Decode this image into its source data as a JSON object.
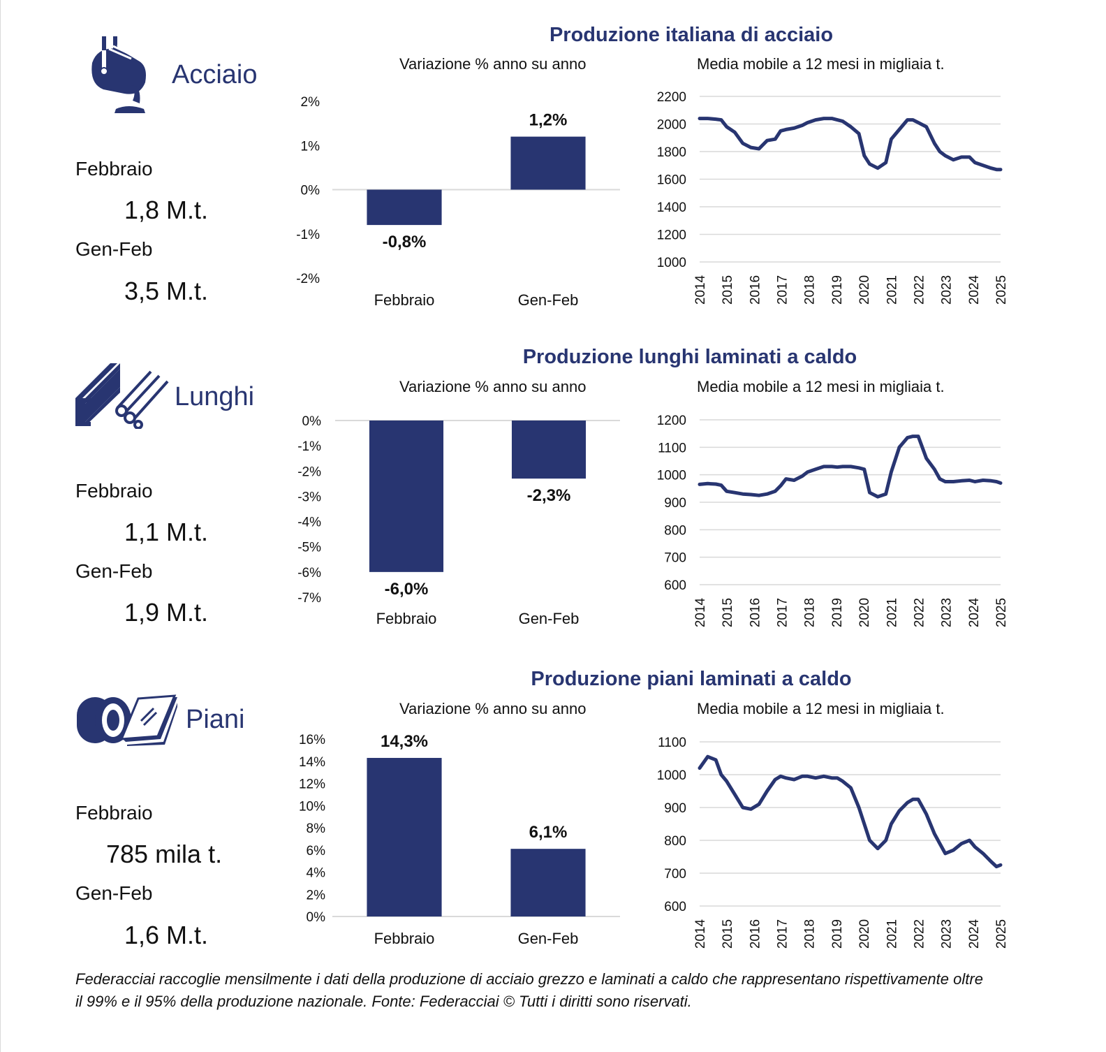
{
  "colors": {
    "accent": "#283571",
    "grid": "#d9d9d9"
  },
  "sections": [
    {
      "name": "Acciaio",
      "icon": "ladle-icon",
      "month_label": "Febbraio",
      "month_value": "1,8 M.t.",
      "ytd_label": "Gen-Feb",
      "ytd_value": "3,5 M.t.",
      "title": "Produzione italiana di acciaio",
      "bar_subtitle": "Variazione % anno su anno",
      "line_subtitle": "Media mobile a 12 mesi in migliaia t."
    },
    {
      "name": "Lunghi",
      "icon": "beam-bars-icon",
      "month_label": "Febbraio",
      "month_value": "1,1 M.t.",
      "ytd_label": "Gen-Feb",
      "ytd_value": "1,9 M.t.",
      "title": "Produzione lunghi laminati a caldo",
      "bar_subtitle": "Variazione % anno su anno",
      "line_subtitle": "Media mobile a 12 mesi in migliaia t."
    },
    {
      "name": "Piani",
      "icon": "coil-sheets-icon",
      "month_label": "Febbraio",
      "month_value": "785 mila t.",
      "ytd_label": "Gen-Feb",
      "ytd_value": "1,6 M.t.",
      "title": "Produzione piani laminati a caldo",
      "bar_subtitle": "Variazione % anno su anno",
      "line_subtitle": "Media mobile a 12 mesi in migliaia t."
    }
  ],
  "footnote": "Federacciai raccoglie mensilmente i dati della produzione di acciaio grezzo e laminati a caldo che rappresentano rispettivamente oltre il 99% e il 95% della produzione nazionale. Fonte: Federacciai © Tutti i diritti sono riservati.",
  "chart_data": [
    {
      "type": "bar",
      "categories": [
        "Febbraio",
        "Gen-Feb"
      ],
      "values": [
        -0.8,
        1.2
      ],
      "data_labels": [
        "-0,8%",
        "1,2%"
      ],
      "ylim": [
        -2,
        2
      ],
      "y_ticks": [
        2,
        1,
        0,
        -1,
        -2
      ],
      "y_tick_labels": [
        "2%",
        "1%",
        "0%",
        "-1%",
        "-2%"
      ],
      "color": "#283571"
    },
    {
      "type": "line",
      "x_tick_labels": [
        "2014",
        "2015",
        "2016",
        "2017",
        "2018",
        "2019",
        "2020",
        "2021",
        "2022",
        "2023",
        "2024",
        "2025"
      ],
      "ylim": [
        1000,
        2200
      ],
      "y_ticks": [
        2200,
        2000,
        1800,
        1600,
        1400,
        1200,
        1000
      ],
      "y_tick_labels": [
        "2200",
        "2000",
        "1800",
        "1600",
        "1400",
        "1200",
        "1000"
      ],
      "x": [
        2014.0,
        2014.3,
        2014.6,
        2014.8,
        2015.0,
        2015.3,
        2015.6,
        2015.9,
        2016.2,
        2016.5,
        2016.8,
        2017.0,
        2017.2,
        2017.5,
        2017.8,
        2018.0,
        2018.3,
        2018.6,
        2018.9,
        2019.1,
        2019.3,
        2019.6,
        2019.9,
        2020.1,
        2020.3,
        2020.6,
        2020.9,
        2021.1,
        2021.4,
        2021.7,
        2021.9,
        2022.1,
        2022.4,
        2022.7,
        2022.9,
        2023.1,
        2023.4,
        2023.7,
        2024.0,
        2024.2,
        2024.5,
        2024.8,
        2025.0,
        2025.15
      ],
      "series": [
        {
          "values": [
            2040,
            2040,
            2035,
            2030,
            1980,
            1940,
            1860,
            1830,
            1820,
            1880,
            1890,
            1950,
            1960,
            1970,
            1990,
            2010,
            2030,
            2040,
            2040,
            2030,
            2020,
            1980,
            1930,
            1770,
            1710,
            1680,
            1720,
            1890,
            1960,
            2030,
            2030,
            2010,
            1980,
            1860,
            1800,
            1770,
            1740,
            1760,
            1760,
            1720,
            1700,
            1680,
            1670,
            1670
          ]
        }
      ],
      "color": "#283571"
    },
    {
      "type": "bar",
      "categories": [
        "Febbraio",
        "Gen-Feb"
      ],
      "values": [
        -6.0,
        -2.3
      ],
      "data_labels": [
        "-6,0%",
        "-2,3%"
      ],
      "ylim": [
        -7,
        0
      ],
      "y_ticks": [
        0,
        -1,
        -2,
        -3,
        -4,
        -5,
        -6,
        -7
      ],
      "y_tick_labels": [
        "0%",
        "-1%",
        "-2%",
        "-3%",
        "-4%",
        "-5%",
        "-6%",
        "-7%"
      ],
      "color": "#283571"
    },
    {
      "type": "line",
      "x_tick_labels": [
        "2014",
        "2015",
        "2016",
        "2017",
        "2018",
        "2019",
        "2020",
        "2021",
        "2022",
        "2023",
        "2024",
        "2025"
      ],
      "ylim": [
        600,
        1200
      ],
      "y_ticks": [
        1200,
        1100,
        1000,
        900,
        800,
        700,
        600
      ],
      "y_tick_labels": [
        "1200",
        "1100",
        "1000",
        "900",
        "800",
        "700",
        "600"
      ],
      "x": [
        2014.0,
        2014.3,
        2014.6,
        2014.8,
        2015.0,
        2015.3,
        2015.6,
        2015.9,
        2016.2,
        2016.5,
        2016.8,
        2017.0,
        2017.2,
        2017.5,
        2017.8,
        2018.0,
        2018.3,
        2018.6,
        2018.9,
        2019.1,
        2019.3,
        2019.6,
        2019.9,
        2020.1,
        2020.3,
        2020.6,
        2020.9,
        2021.1,
        2021.4,
        2021.7,
        2021.9,
        2022.1,
        2022.4,
        2022.7,
        2022.9,
        2023.1,
        2023.4,
        2023.7,
        2024.0,
        2024.2,
        2024.5,
        2024.8,
        2025.0,
        2025.15
      ],
      "series": [
        {
          "values": [
            965,
            968,
            966,
            962,
            940,
            935,
            930,
            928,
            925,
            930,
            940,
            960,
            985,
            980,
            995,
            1010,
            1020,
            1030,
            1030,
            1028,
            1030,
            1030,
            1025,
            1020,
            935,
            920,
            930,
            1010,
            1100,
            1135,
            1140,
            1140,
            1060,
            1020,
            985,
            975,
            975,
            978,
            980,
            975,
            980,
            978,
            975,
            970
          ]
        }
      ],
      "color": "#283571"
    },
    {
      "type": "bar",
      "categories": [
        "Febbraio",
        "Gen-Feb"
      ],
      "values": [
        14.3,
        6.1
      ],
      "data_labels": [
        "14,3%",
        "6,1%"
      ],
      "ylim": [
        0,
        16
      ],
      "y_ticks": [
        16,
        14,
        12,
        10,
        8,
        6,
        4,
        2,
        0
      ],
      "y_tick_labels": [
        "16%",
        "14%",
        "12%",
        "10%",
        "8%",
        "6%",
        "4%",
        "2%",
        "0%"
      ],
      "color": "#283571"
    },
    {
      "type": "line",
      "x_tick_labels": [
        "2014",
        "2015",
        "2016",
        "2017",
        "2018",
        "2019",
        "2020",
        "2021",
        "2022",
        "2023",
        "2024",
        "2025"
      ],
      "ylim": [
        600,
        1100
      ],
      "y_ticks": [
        1100,
        1000,
        900,
        800,
        700,
        600
      ],
      "y_tick_labels": [
        "1100",
        "1000",
        "900",
        "800",
        "700",
        "600"
      ],
      "x": [
        2014.0,
        2014.3,
        2014.6,
        2014.8,
        2015.0,
        2015.3,
        2015.6,
        2015.9,
        2016.2,
        2016.5,
        2016.8,
        2017.0,
        2017.2,
        2017.5,
        2017.8,
        2018.0,
        2018.3,
        2018.6,
        2018.9,
        2019.1,
        2019.3,
        2019.6,
        2019.9,
        2020.1,
        2020.3,
        2020.6,
        2020.9,
        2021.1,
        2021.4,
        2021.7,
        2021.9,
        2022.1,
        2022.4,
        2022.7,
        2022.9,
        2023.1,
        2023.4,
        2023.7,
        2024.0,
        2024.2,
        2024.5,
        2024.8,
        2025.0,
        2025.15
      ],
      "series": [
        {
          "values": [
            1020,
            1055,
            1045,
            1000,
            980,
            940,
            900,
            895,
            910,
            950,
            985,
            995,
            990,
            985,
            995,
            995,
            990,
            995,
            990,
            990,
            980,
            960,
            900,
            850,
            800,
            775,
            800,
            850,
            890,
            915,
            925,
            925,
            880,
            820,
            790,
            760,
            770,
            790,
            800,
            780,
            760,
            735,
            720,
            725
          ]
        }
      ],
      "color": "#283571"
    }
  ]
}
